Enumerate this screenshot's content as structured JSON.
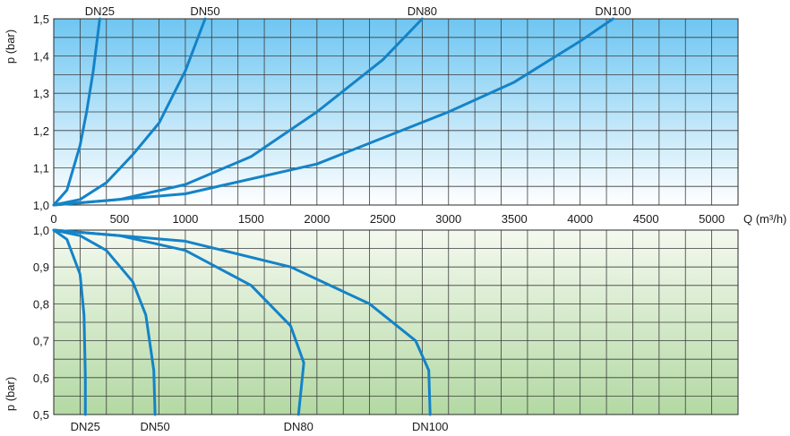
{
  "chart_data": [
    {
      "type": "line",
      "title": "",
      "xlabel": "Q (m³/h)",
      "ylabel": "p (bar)",
      "xlim": [
        0,
        5200
      ],
      "ylim": [
        1.0,
        1.5
      ],
      "x_ticks": [
        "0",
        "500",
        "1000",
        "1500",
        "2000",
        "2500",
        "3000",
        "3500",
        "4000",
        "4500",
        "5000"
      ],
      "y_ticks": [
        "1,0",
        "1,1",
        "1,2",
        "1,3",
        "1,4",
        "1,5"
      ],
      "grid": true,
      "background": {
        "top": "#6ec6f2",
        "bottom": "#ffffff"
      },
      "line_color": "#1483c8",
      "series": [
        {
          "name": "DN25",
          "x": [
            0,
            100,
            200,
            250,
            300,
            350
          ],
          "y": [
            1.0,
            1.04,
            1.16,
            1.25,
            1.36,
            1.5
          ]
        },
        {
          "name": "DN50",
          "x": [
            0,
            200,
            400,
            600,
            800,
            1000,
            1150
          ],
          "y": [
            1.0,
            1.015,
            1.06,
            1.135,
            1.22,
            1.36,
            1.5
          ]
        },
        {
          "name": "DN80",
          "x": [
            0,
            500,
            1000,
            1500,
            2000,
            2500,
            2800
          ],
          "y": [
            1.0,
            1.015,
            1.055,
            1.13,
            1.25,
            1.39,
            1.5
          ]
        },
        {
          "name": "DN100",
          "x": [
            0,
            1000,
            2000,
            3000,
            3500,
            4000,
            4250
          ],
          "y": [
            1.0,
            1.03,
            1.11,
            1.25,
            1.33,
            1.44,
            1.5
          ]
        }
      ]
    },
    {
      "type": "line",
      "title": "",
      "xlabel": "",
      "ylabel": "p (bar)",
      "xlim": [
        0,
        5200
      ],
      "ylim": [
        0.5,
        1.0
      ],
      "y_ticks": [
        "1,0",
        "0,9",
        "0,8",
        "0,7",
        "0,6",
        "0,5"
      ],
      "grid": true,
      "background": {
        "top": "#f4f9ef",
        "bottom": "#b3d9a3"
      },
      "line_color": "#1483c8",
      "series": [
        {
          "name": "DN25",
          "x": [
            0,
            100,
            200,
            230,
            240,
            240
          ],
          "y": [
            1.0,
            0.975,
            0.88,
            0.77,
            0.6,
            0.5
          ]
        },
        {
          "name": "DN50",
          "x": [
            0,
            200,
            400,
            600,
            700,
            760,
            770
          ],
          "y": [
            1.0,
            0.985,
            0.945,
            0.86,
            0.77,
            0.62,
            0.5
          ]
        },
        {
          "name": "DN80",
          "x": [
            0,
            500,
            1000,
            1500,
            1800,
            1900,
            1860
          ],
          "y": [
            1.0,
            0.985,
            0.945,
            0.85,
            0.74,
            0.64,
            0.5
          ]
        },
        {
          "name": "DN100",
          "x": [
            0,
            1000,
            1800,
            2400,
            2750,
            2850,
            2860
          ],
          "y": [
            1.0,
            0.97,
            0.9,
            0.8,
            0.7,
            0.62,
            0.5
          ]
        }
      ]
    }
  ]
}
